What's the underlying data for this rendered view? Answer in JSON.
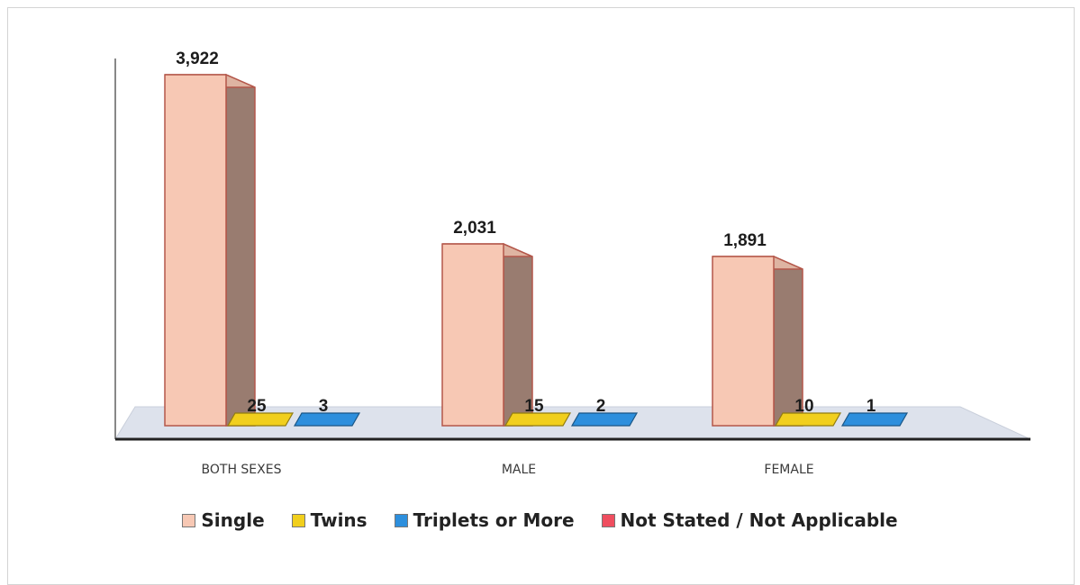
{
  "chart_data": {
    "type": "bar",
    "title": "",
    "xlabel": "",
    "ylabel": "",
    "categories": [
      "BOTH SEXES",
      "MALE",
      "FEMALE"
    ],
    "series": [
      {
        "name": "Single",
        "values": [
          3922,
          2031,
          1891
        ],
        "labels": [
          "3,922",
          "2,031",
          "1,891"
        ],
        "color": "#f7c8b4"
      },
      {
        "name": "Twins",
        "values": [
          25,
          15,
          10
        ],
        "labels": [
          "25",
          "15",
          "10"
        ],
        "color": "#f1cf1d"
      },
      {
        "name": "Triplets or More",
        "values": [
          3,
          2,
          1
        ],
        "labels": [
          "3",
          "2",
          "1"
        ],
        "color": "#2d8fdd"
      },
      {
        "name": "Not Stated / Not Applicable",
        "values": [
          0,
          0,
          0
        ],
        "labels": [
          "",
          "",
          ""
        ],
        "color": "#ef4e5f"
      }
    ],
    "ylim": [
      0,
      3922
    ],
    "grid": false,
    "legend_position": "bottom"
  }
}
